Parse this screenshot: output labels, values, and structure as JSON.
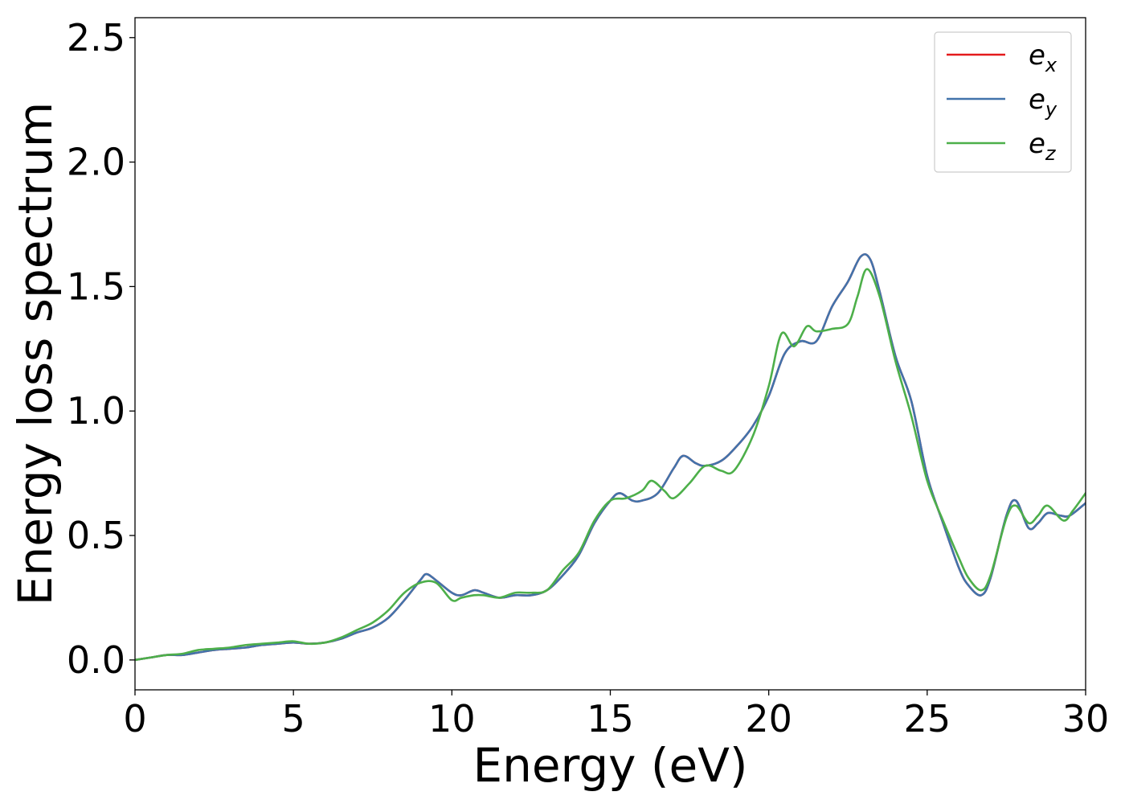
{
  "chart_data": {
    "type": "line",
    "title": "",
    "xlabel": "Energy (eV)",
    "ylabel": "Energy loss spectrum",
    "xlim": [
      0,
      30
    ],
    "ylim": [
      -0.12,
      2.58
    ],
    "xticks": [
      0,
      5,
      10,
      15,
      20,
      25,
      30
    ],
    "xtick_labels": [
      "0",
      "5",
      "10",
      "15",
      "20",
      "25",
      "30"
    ],
    "yticks": [
      0.0,
      0.5,
      1.0,
      1.5,
      2.0,
      2.5
    ],
    "ytick_labels": [
      "0.0",
      "0.5",
      "1.0",
      "1.5",
      "2.0",
      "2.5"
    ],
    "grid": false,
    "legend_position": "top-right",
    "series": [
      {
        "name": "ex",
        "label_base": "e",
        "label_sub": "x",
        "color": "#e41a1c",
        "x": [
          0,
          0.5,
          1,
          1.5,
          2,
          2.5,
          3,
          3.5,
          4,
          4.5,
          5,
          5.5,
          6,
          6.5,
          7,
          7.5,
          8,
          8.5,
          9,
          9.2,
          9.5,
          10,
          10.3,
          10.7,
          11,
          11.5,
          12,
          12.5,
          13,
          13.5,
          14,
          14.5,
          15,
          15.3,
          15.7,
          16,
          16.5,
          17,
          17.3,
          17.7,
          18,
          18.5,
          19,
          19.5,
          20,
          20.5,
          21,
          21.5,
          22,
          22.5,
          22.9,
          23.2,
          23.5,
          24,
          24.5,
          25,
          25.5,
          26,
          26.3,
          26.7,
          27,
          27.5,
          27.8,
          28.2,
          28.5,
          28.8,
          29.2,
          29.5,
          30
        ],
        "values": [
          0.0,
          0.01,
          0.02,
          0.02,
          0.03,
          0.04,
          0.045,
          0.05,
          0.06,
          0.065,
          0.07,
          0.065,
          0.07,
          0.085,
          0.11,
          0.13,
          0.17,
          0.24,
          0.32,
          0.345,
          0.32,
          0.27,
          0.26,
          0.28,
          0.27,
          0.25,
          0.26,
          0.26,
          0.28,
          0.34,
          0.42,
          0.55,
          0.64,
          0.67,
          0.64,
          0.64,
          0.67,
          0.77,
          0.82,
          0.79,
          0.78,
          0.8,
          0.86,
          0.94,
          1.06,
          1.23,
          1.28,
          1.28,
          1.42,
          1.52,
          1.62,
          1.61,
          1.48,
          1.22,
          1.04,
          0.74,
          0.55,
          0.37,
          0.3,
          0.26,
          0.33,
          0.58,
          0.64,
          0.53,
          0.55,
          0.59,
          0.58,
          0.58,
          0.63
        ]
      },
      {
        "name": "ey",
        "label_base": "e",
        "label_sub": "y",
        "color": "#4273ab",
        "x": [
          0,
          0.5,
          1,
          1.5,
          2,
          2.5,
          3,
          3.5,
          4,
          4.5,
          5,
          5.5,
          6,
          6.5,
          7,
          7.5,
          8,
          8.5,
          9,
          9.2,
          9.5,
          10,
          10.3,
          10.7,
          11,
          11.5,
          12,
          12.5,
          13,
          13.5,
          14,
          14.5,
          15,
          15.3,
          15.7,
          16,
          16.5,
          17,
          17.3,
          17.7,
          18,
          18.5,
          19,
          19.5,
          20,
          20.5,
          21,
          21.5,
          22,
          22.5,
          22.9,
          23.2,
          23.5,
          24,
          24.5,
          25,
          25.5,
          26,
          26.3,
          26.7,
          27,
          27.5,
          27.8,
          28.2,
          28.5,
          28.8,
          29.2,
          29.5,
          30
        ],
        "values": [
          0.0,
          0.01,
          0.02,
          0.02,
          0.03,
          0.04,
          0.045,
          0.05,
          0.06,
          0.065,
          0.07,
          0.065,
          0.07,
          0.085,
          0.11,
          0.13,
          0.17,
          0.24,
          0.32,
          0.345,
          0.32,
          0.27,
          0.26,
          0.28,
          0.27,
          0.25,
          0.26,
          0.26,
          0.28,
          0.34,
          0.42,
          0.55,
          0.64,
          0.67,
          0.64,
          0.64,
          0.67,
          0.77,
          0.82,
          0.79,
          0.78,
          0.8,
          0.86,
          0.94,
          1.06,
          1.23,
          1.28,
          1.28,
          1.42,
          1.52,
          1.62,
          1.61,
          1.48,
          1.22,
          1.04,
          0.74,
          0.55,
          0.37,
          0.3,
          0.26,
          0.33,
          0.58,
          0.64,
          0.53,
          0.55,
          0.59,
          0.58,
          0.58,
          0.63
        ]
      },
      {
        "name": "ez",
        "label_base": "e",
        "label_sub": "z",
        "color": "#4daf4a",
        "x": [
          0,
          0.5,
          1,
          1.5,
          2,
          2.5,
          3,
          3.5,
          4,
          4.5,
          5,
          5.5,
          6,
          6.5,
          7,
          7.5,
          8,
          8.5,
          9,
          9.5,
          10,
          10.3,
          10.7,
          11,
          11.5,
          12,
          12.5,
          13,
          13.5,
          14,
          14.5,
          15,
          15.5,
          16,
          16.3,
          16.7,
          17,
          17.5,
          18,
          18.5,
          18.9,
          19.5,
          20,
          20.4,
          20.8,
          21.2,
          21.5,
          22,
          22.5,
          22.8,
          23.1,
          23.5,
          24,
          24.5,
          25,
          25.5,
          26,
          26.3,
          26.7,
          27,
          27.5,
          27.8,
          28.2,
          28.5,
          28.8,
          29.3,
          29.6,
          30
        ],
        "values": [
          0.0,
          0.01,
          0.02,
          0.025,
          0.04,
          0.045,
          0.05,
          0.06,
          0.065,
          0.07,
          0.075,
          0.065,
          0.07,
          0.09,
          0.12,
          0.15,
          0.2,
          0.27,
          0.31,
          0.31,
          0.24,
          0.25,
          0.26,
          0.26,
          0.25,
          0.27,
          0.27,
          0.28,
          0.36,
          0.43,
          0.56,
          0.64,
          0.65,
          0.68,
          0.72,
          0.68,
          0.65,
          0.71,
          0.78,
          0.76,
          0.76,
          0.9,
          1.1,
          1.31,
          1.26,
          1.34,
          1.32,
          1.33,
          1.35,
          1.46,
          1.57,
          1.46,
          1.2,
          0.98,
          0.72,
          0.56,
          0.41,
          0.33,
          0.28,
          0.34,
          0.57,
          0.62,
          0.55,
          0.58,
          0.62,
          0.56,
          0.6,
          0.67
        ]
      }
    ]
  }
}
